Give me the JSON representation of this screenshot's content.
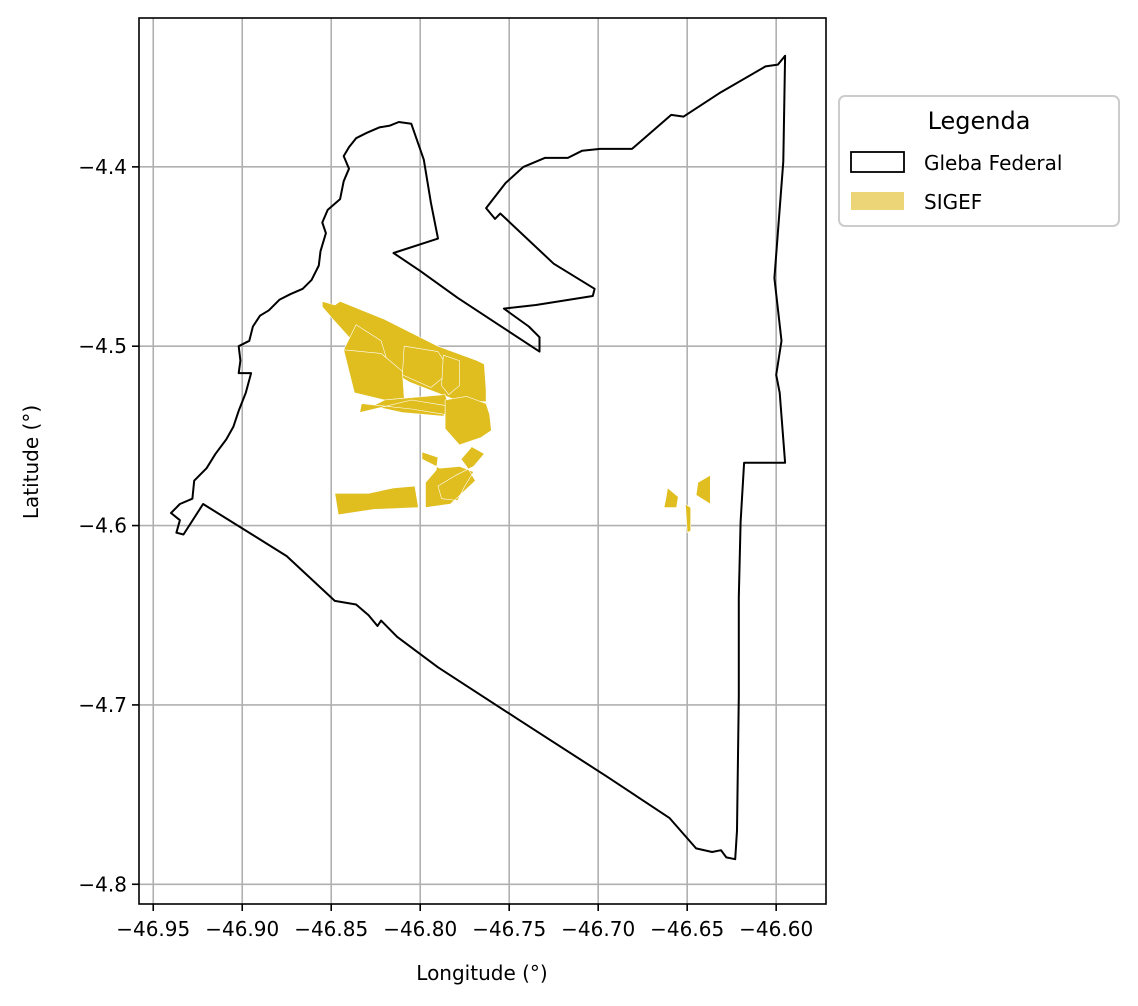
{
  "chart_data": {
    "type": "map",
    "xlabel": "Longitude (°)",
    "ylabel": "Latitude (°)",
    "xlim": [
      -46.958,
      -46.572
    ],
    "ylim": [
      -4.811,
      -4.317
    ],
    "grid": true,
    "x_ticks": [
      {
        "value": -46.95,
        "label": "−46.95"
      },
      {
        "value": -46.9,
        "label": "−46.90"
      },
      {
        "value": -46.85,
        "label": "−46.85"
      },
      {
        "value": -46.8,
        "label": "−46.80"
      },
      {
        "value": -46.75,
        "label": "−46.75"
      },
      {
        "value": -46.7,
        "label": "−46.70"
      },
      {
        "value": -46.65,
        "label": "−46.65"
      },
      {
        "value": -46.6,
        "label": "−46.60"
      }
    ],
    "y_ticks": [
      {
        "value": -4.4,
        "label": "−4.4"
      },
      {
        "value": -4.5,
        "label": "−4.5"
      },
      {
        "value": -4.6,
        "label": "−4.6"
      },
      {
        "value": -4.7,
        "label": "−4.7"
      },
      {
        "value": -4.8,
        "label": "−4.8"
      }
    ],
    "legend": {
      "title": "Legenda",
      "placement": "outside-upper-right",
      "entries": [
        {
          "label": "Gleba Federal",
          "style": "outline",
          "color": "#000000"
        },
        {
          "label": "SIGEF",
          "style": "fill",
          "color": "#e0be20"
        }
      ]
    },
    "layers": {
      "gleba_federal": {
        "name": "Gleba Federal",
        "stroke": "#000000",
        "fill": "none",
        "coordinates": [
          [
            -46.937,
            -4.604
          ],
          [
            -46.933,
            -4.605
          ],
          [
            -46.922,
            -4.588
          ],
          [
            -46.875,
            -4.617
          ],
          [
            -46.848,
            -4.642
          ],
          [
            -46.836,
            -4.644
          ],
          [
            -46.829,
            -4.65
          ],
          [
            -46.824,
            -4.656
          ],
          [
            -46.822,
            -4.653
          ],
          [
            -46.813,
            -4.662
          ],
          [
            -46.79,
            -4.679
          ],
          [
            -46.745,
            -4.708
          ],
          [
            -46.695,
            -4.74
          ],
          [
            -46.66,
            -4.763
          ],
          [
            -46.645,
            -4.78
          ],
          [
            -46.636,
            -4.782
          ],
          [
            -46.631,
            -4.781
          ],
          [
            -46.628,
            -4.785
          ],
          [
            -46.623,
            -4.786
          ],
          [
            -46.622,
            -4.77
          ],
          [
            -46.621,
            -4.695
          ],
          [
            -46.621,
            -4.64
          ],
          [
            -46.62,
            -4.598
          ],
          [
            -46.618,
            -4.565
          ],
          [
            -46.595,
            -4.565
          ],
          [
            -46.598,
            -4.526
          ],
          [
            -46.6,
            -4.516
          ],
          [
            -46.597,
            -4.497
          ],
          [
            -46.601,
            -4.462
          ],
          [
            -46.596,
            -4.397
          ],
          [
            -46.595,
            -4.338
          ],
          [
            -46.599,
            -4.343
          ],
          [
            -46.606,
            -4.344
          ],
          [
            -46.632,
            -4.359
          ],
          [
            -46.652,
            -4.372
          ],
          [
            -46.659,
            -4.371
          ],
          [
            -46.681,
            -4.39
          ],
          [
            -46.699,
            -4.39
          ],
          [
            -46.709,
            -4.391
          ],
          [
            -46.717,
            -4.395
          ],
          [
            -46.73,
            -4.395
          ],
          [
            -46.742,
            -4.4
          ],
          [
            -46.752,
            -4.409
          ],
          [
            -46.763,
            -4.423
          ],
          [
            -46.758,
            -4.429
          ],
          [
            -46.755,
            -4.426
          ],
          [
            -46.725,
            -4.454
          ],
          [
            -46.702,
            -4.468
          ],
          [
            -46.703,
            -4.472
          ],
          [
            -46.735,
            -4.477
          ],
          [
            -46.753,
            -4.479
          ],
          [
            -46.739,
            -4.489
          ],
          [
            -46.733,
            -4.495
          ],
          [
            -46.733,
            -4.503
          ],
          [
            -46.756,
            -4.488
          ],
          [
            -46.779,
            -4.473
          ],
          [
            -46.8,
            -4.458
          ],
          [
            -46.815,
            -4.448
          ],
          [
            -46.79,
            -4.44
          ],
          [
            -46.794,
            -4.42
          ],
          [
            -46.798,
            -4.396
          ],
          [
            -46.805,
            -4.376
          ],
          [
            -46.812,
            -4.375
          ],
          [
            -46.817,
            -4.377
          ],
          [
            -46.823,
            -4.378
          ],
          [
            -46.83,
            -4.381
          ],
          [
            -46.836,
            -4.384
          ],
          [
            -46.84,
            -4.389
          ],
          [
            -46.843,
            -4.394
          ],
          [
            -46.84,
            -4.401
          ],
          [
            -46.843,
            -4.408
          ],
          [
            -46.845,
            -4.418
          ],
          [
            -46.852,
            -4.424
          ],
          [
            -46.855,
            -4.431
          ],
          [
            -46.853,
            -4.437
          ],
          [
            -46.856,
            -4.447
          ],
          [
            -46.857,
            -4.455
          ],
          [
            -46.861,
            -4.463
          ],
          [
            -46.866,
            -4.468
          ],
          [
            -46.873,
            -4.471
          ],
          [
            -46.879,
            -4.474
          ],
          [
            -46.885,
            -4.48
          ],
          [
            -46.89,
            -4.483
          ],
          [
            -46.894,
            -4.489
          ],
          [
            -46.896,
            -4.497
          ],
          [
            -46.902,
            -4.5
          ],
          [
            -46.901,
            -4.508
          ],
          [
            -46.902,
            -4.515
          ],
          [
            -46.895,
            -4.515
          ],
          [
            -46.898,
            -4.526
          ],
          [
            -46.902,
            -4.536
          ],
          [
            -46.905,
            -4.545
          ],
          [
            -46.909,
            -4.552
          ],
          [
            -46.915,
            -4.56
          ],
          [
            -46.92,
            -4.568
          ],
          [
            -46.927,
            -4.575
          ],
          [
            -46.928,
            -4.585
          ],
          [
            -46.935,
            -4.588
          ],
          [
            -46.94,
            -4.593
          ],
          [
            -46.935,
            -4.597
          ],
          [
            -46.937,
            -4.604
          ]
        ]
      },
      "sigef": {
        "name": "SIGEF",
        "fill": "#e0be20",
        "parcels": [
          [
            [
              -46.855,
              -4.475
            ],
            [
              -46.848,
              -4.477
            ],
            [
              -46.845,
              -4.475
            ],
            [
              -46.82,
              -4.485
            ],
            [
              -46.79,
              -4.5
            ],
            [
              -46.768,
              -4.508
            ],
            [
              -46.764,
              -4.51
            ],
            [
              -46.763,
              -4.524
            ],
            [
              -46.763,
              -4.531
            ],
            [
              -46.78,
              -4.53
            ],
            [
              -46.806,
              -4.52
            ],
            [
              -46.83,
              -4.506
            ],
            [
              -46.849,
              -4.485
            ],
            [
              -46.855,
              -4.478
            ]
          ],
          [
            [
              -46.836,
              -4.488
            ],
            [
              -46.822,
              -4.497
            ],
            [
              -46.818,
              -4.51
            ],
            [
              -46.834,
              -4.522
            ],
            [
              -46.84,
              -4.515
            ],
            [
              -46.843,
              -4.502
            ]
          ],
          [
            [
              -46.843,
              -4.502
            ],
            [
              -46.837,
              -4.526
            ],
            [
              -46.82,
              -4.53
            ],
            [
              -46.809,
              -4.529
            ],
            [
              -46.81,
              -4.514
            ],
            [
              -46.822,
              -4.504
            ]
          ],
          [
            [
              -46.809,
              -4.5
            ],
            [
              -46.79,
              -4.503
            ],
            [
              -46.783,
              -4.514
            ],
            [
              -46.794,
              -4.523
            ],
            [
              -46.81,
              -4.516
            ]
          ],
          [
            [
              -46.787,
              -4.505
            ],
            [
              -46.778,
              -4.508
            ],
            [
              -46.778,
              -4.522
            ],
            [
              -46.784,
              -4.527
            ],
            [
              -46.788,
              -4.522
            ]
          ],
          [
            [
              -46.82,
              -4.53
            ],
            [
              -46.786,
              -4.527
            ],
            [
              -46.783,
              -4.535
            ],
            [
              -46.787,
              -4.539
            ],
            [
              -46.81,
              -4.537
            ],
            [
              -46.833,
              -4.532
            ],
            [
              -46.834,
              -4.537
            ]
          ],
          [
            [
              -46.786,
              -4.53
            ],
            [
              -46.774,
              -4.528
            ],
            [
              -46.763,
              -4.532
            ],
            [
              -46.761,
              -4.538
            ],
            [
              -46.76,
              -4.547
            ],
            [
              -46.766,
              -4.551
            ],
            [
              -46.778,
              -4.555
            ],
            [
              -46.786,
              -4.546
            ],
            [
              -46.786,
              -4.537
            ]
          ],
          [
            [
              -46.833,
              -4.532
            ],
            [
              -46.805,
              -4.535
            ],
            [
              -46.786,
              -4.538
            ],
            [
              -46.786,
              -4.533
            ],
            [
              -46.805,
              -4.53
            ],
            [
              -46.834,
              -4.537
            ]
          ],
          [
            [
              -46.848,
              -4.582
            ],
            [
              -46.829,
              -4.582
            ],
            [
              -46.815,
              -4.579
            ],
            [
              -46.803,
              -4.578
            ],
            [
              -46.801,
              -4.59
            ],
            [
              -46.826,
              -4.591
            ],
            [
              -46.846,
              -4.594
            ]
          ],
          [
            [
              -46.799,
              -4.559
            ],
            [
              -46.79,
              -4.562
            ],
            [
              -46.791,
              -4.569
            ],
            [
              -46.797,
              -4.576
            ],
            [
              -46.797,
              -4.59
            ],
            [
              -46.783,
              -4.588
            ],
            [
              -46.769,
              -4.575
            ],
            [
              -46.774,
              -4.567
            ],
            [
              -46.777,
              -4.563
            ],
            [
              -46.771,
              -4.556
            ],
            [
              -46.764,
              -4.56
            ],
            [
              -46.77,
              -4.567
            ],
            [
              -46.78,
              -4.572
            ],
            [
              -46.79,
              -4.578
            ],
            [
              -46.788,
              -4.585
            ],
            [
              -46.779,
              -4.586
            ],
            [
              -46.775,
              -4.578
            ],
            [
              -46.77,
              -4.57
            ],
            [
              -46.778,
              -4.567
            ],
            [
              -46.789,
              -4.568
            ],
            [
              -46.799,
              -4.563
            ]
          ],
          [
            [
              -46.663,
              -4.59
            ],
            [
              -46.656,
              -4.59
            ],
            [
              -46.655,
              -4.584
            ],
            [
              -46.661,
              -4.579
            ],
            [
              -46.662,
              -4.585
            ]
          ],
          [
            [
              -46.644,
              -4.576
            ],
            [
              -46.637,
              -4.572
            ],
            [
              -46.637,
              -4.588
            ],
            [
              -46.645,
              -4.583
            ]
          ],
          [
            [
              -46.651,
              -4.588
            ],
            [
              -46.648,
              -4.59
            ],
            [
              -46.648,
              -4.603
            ],
            [
              -46.65,
              -4.604
            ]
          ]
        ]
      }
    }
  }
}
